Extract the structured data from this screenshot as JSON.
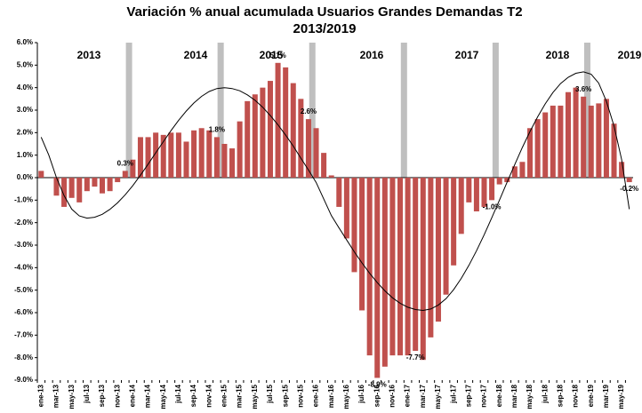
{
  "chart_data": {
    "type": "bar",
    "title": "Variación % anual acumulada Usuarios Grandes Demandas T2",
    "subtitle": "2013/2019",
    "color": "#c0504d",
    "trend_color": "#000000",
    "categories": [
      "ene-13",
      null,
      "mar-13",
      null,
      "may-13",
      null,
      "jul-13",
      null,
      "sep-13",
      null,
      "nov-13",
      null,
      "ene-14",
      null,
      "mar-14",
      null,
      "may-14",
      null,
      "jul-14",
      null,
      "sep-14",
      null,
      "nov-14",
      null,
      "ene-15",
      null,
      "mar-15",
      null,
      "may-15",
      null,
      "jul-15",
      null,
      "sep-15",
      null,
      "nov-15",
      null,
      "ene-16",
      null,
      "mar-16",
      null,
      "may-16",
      null,
      "jul-16",
      null,
      "sep-16",
      null,
      "nov-16",
      null,
      "ene-17",
      null,
      "mar-17",
      null,
      "may-17",
      null,
      "jul-17",
      null,
      "sep-17",
      null,
      "nov-17",
      null,
      "ene-18",
      null,
      "mar-18",
      null,
      "may-18",
      null,
      "jul-18",
      null,
      "sep-18",
      null,
      "nov-18",
      null,
      "ene-19",
      null,
      "mar-19",
      null,
      "may-19",
      null
    ],
    "values": [
      0.3,
      0.0,
      -0.8,
      -1.3,
      -0.9,
      -1.1,
      -0.6,
      -0.4,
      -0.7,
      -0.6,
      -0.2,
      0.3,
      0.8,
      1.8,
      1.8,
      2.0,
      1.9,
      2.0,
      2.0,
      1.6,
      2.1,
      2.2,
      2.1,
      1.8,
      1.5,
      1.3,
      2.5,
      3.4,
      3.7,
      4.0,
      4.3,
      5.1,
      4.9,
      4.2,
      3.5,
      2.6,
      2.2,
      1.1,
      0.1,
      -1.3,
      -2.7,
      -4.2,
      -5.9,
      -7.9,
      -8.9,
      -8.4,
      -7.9,
      -7.9,
      -7.9,
      -7.7,
      -8.1,
      -7.1,
      -6.4,
      -5.2,
      -3.9,
      -2.5,
      -1.1,
      -1.5,
      -1.3,
      -1.0,
      -0.3,
      -0.2,
      0.5,
      0.7,
      2.2,
      2.6,
      2.9,
      3.2,
      3.2,
      3.8,
      4.0,
      3.6,
      3.2,
      3.3,
      3.5,
      2.4,
      0.7,
      -0.2
    ],
    "value_labels": [
      null,
      null,
      null,
      null,
      null,
      null,
      null,
      null,
      null,
      null,
      null,
      "0.3%",
      null,
      null,
      null,
      null,
      null,
      null,
      null,
      null,
      null,
      null,
      null,
      "1.8%",
      null,
      null,
      null,
      null,
      null,
      null,
      null,
      "5.1%",
      null,
      null,
      null,
      "2.6%",
      null,
      null,
      null,
      null,
      null,
      null,
      null,
      null,
      "-8.9%",
      null,
      null,
      null,
      null,
      "-7.7%",
      null,
      null,
      null,
      null,
      null,
      null,
      null,
      null,
      null,
      "-1.0%",
      null,
      null,
      null,
      null,
      null,
      null,
      null,
      null,
      null,
      null,
      null,
      "3.6%",
      null,
      null,
      null,
      null,
      null,
      "-0.2%"
    ],
    "trend": [
      1.8,
      1.0,
      0.0,
      -0.8,
      -1.4,
      -1.7,
      -1.8,
      -1.76,
      -1.63,
      -1.41,
      -1.12,
      -0.76,
      -0.35,
      0.11,
      0.6,
      1.1,
      1.6,
      2.09,
      2.55,
      2.96,
      3.32,
      3.61,
      3.83,
      3.96,
      4.0,
      3.96,
      3.86,
      3.68,
      3.44,
      3.13,
      2.76,
      2.35,
      1.89,
      1.4,
      0.87,
      0.34,
      -0.21,
      -0.95,
      -1.69,
      -2.24,
      -2.77,
      -3.3,
      -3.79,
      -4.25,
      -4.66,
      -5.03,
      -5.34,
      -5.58,
      -5.76,
      -5.86,
      -5.9,
      -5.84,
      -5.66,
      -5.38,
      -4.98,
      -4.48,
      -3.9,
      -3.25,
      -2.54,
      -1.78,
      -1.0,
      -0.2,
      0.58,
      1.34,
      2.05,
      2.7,
      3.28,
      3.78,
      4.18,
      4.46,
      4.64,
      4.7,
      4.6,
      4.2,
      3.4,
      2.3,
      0.8,
      -1.4
    ],
    "year_labels": [
      "2013",
      "2014",
      "2015",
      "2016",
      "2017",
      "2018",
      "2019"
    ],
    "ylim": [
      -9,
      6
    ],
    "yticks": [
      {
        "value": -9,
        "label": "-9.0%"
      },
      {
        "value": -8,
        "label": "-8.0%"
      },
      {
        "value": -7,
        "label": "-7.0%"
      },
      {
        "value": -6,
        "label": "-6.0%"
      },
      {
        "value": -5,
        "label": "-5.0%"
      },
      {
        "value": -4,
        "label": "-4.0%"
      },
      {
        "value": -3,
        "label": "-3.0%"
      },
      {
        "value": -2,
        "label": "-2.0%"
      },
      {
        "value": -1,
        "label": "-1.0%"
      },
      {
        "value": 0,
        "label": "0.0%"
      },
      {
        "value": 1,
        "label": "1.0%"
      },
      {
        "value": 2,
        "label": "2.0%"
      },
      {
        "value": 3,
        "label": "3.0%"
      },
      {
        "value": 4,
        "label": "4.0%"
      },
      {
        "value": 5,
        "label": "5.0%"
      },
      {
        "value": 6,
        "label": "6.0%"
      }
    ],
    "grid": false
  }
}
